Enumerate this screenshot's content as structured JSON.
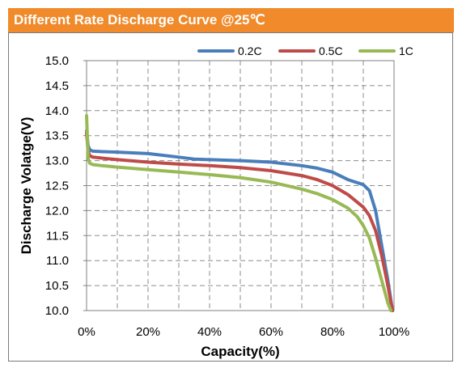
{
  "chart_data": {
    "type": "line",
    "title": "Different Rate Discharge Curve @25℃",
    "xlabel": "Capacity(%)",
    "ylabel": "Discharge Volatge(V)",
    "xlim": [
      0,
      100
    ],
    "ylim": [
      10.0,
      15.0
    ],
    "x_ticks": [
      "0%",
      "20%",
      "40%",
      "60%",
      "80%",
      "100%"
    ],
    "y_ticks": [
      "15.0",
      "14.5",
      "14.0",
      "13.5",
      "13.0",
      "12.5",
      "12.0",
      "11.5",
      "11.0",
      "10.5",
      "10.0"
    ],
    "grid": true,
    "legend_position": "top-right",
    "series": [
      {
        "name": "0.2C",
        "color": "#4a7ebb",
        "points": [
          [
            0,
            13.6
          ],
          [
            0.5,
            13.3
          ],
          [
            1,
            13.22
          ],
          [
            2,
            13.19
          ],
          [
            5,
            13.18
          ],
          [
            10,
            13.17
          ],
          [
            20,
            13.14
          ],
          [
            30,
            13.07
          ],
          [
            35,
            13.03
          ],
          [
            40,
            13.02
          ],
          [
            50,
            13.0
          ],
          [
            60,
            12.97
          ],
          [
            70,
            12.9
          ],
          [
            75,
            12.85
          ],
          [
            80,
            12.77
          ],
          [
            85,
            12.62
          ],
          [
            90,
            12.52
          ],
          [
            92,
            12.4
          ],
          [
            94,
            12.0
          ],
          [
            96,
            11.3
          ],
          [
            98,
            10.6
          ],
          [
            99.5,
            10.0
          ]
        ]
      },
      {
        "name": "0.5C",
        "color": "#be4b48",
        "points": [
          [
            0,
            13.55
          ],
          [
            0.5,
            13.2
          ],
          [
            1,
            13.1
          ],
          [
            2,
            13.07
          ],
          [
            5,
            13.05
          ],
          [
            10,
            13.02
          ],
          [
            20,
            12.97
          ],
          [
            30,
            12.93
          ],
          [
            40,
            12.9
          ],
          [
            50,
            12.86
          ],
          [
            60,
            12.8
          ],
          [
            70,
            12.7
          ],
          [
            75,
            12.62
          ],
          [
            80,
            12.5
          ],
          [
            85,
            12.32
          ],
          [
            90,
            12.07
          ],
          [
            92,
            11.9
          ],
          [
            94,
            11.6
          ],
          [
            96,
            11.1
          ],
          [
            98,
            10.5
          ],
          [
            99.5,
            10.0
          ]
        ]
      },
      {
        "name": "1C",
        "color": "#98b954",
        "points": [
          [
            0,
            13.9
          ],
          [
            0.5,
            13.05
          ],
          [
            1,
            12.95
          ],
          [
            2,
            12.92
          ],
          [
            5,
            12.9
          ],
          [
            10,
            12.87
          ],
          [
            20,
            12.82
          ],
          [
            30,
            12.77
          ],
          [
            40,
            12.72
          ],
          [
            50,
            12.66
          ],
          [
            60,
            12.57
          ],
          [
            70,
            12.43
          ],
          [
            75,
            12.34
          ],
          [
            80,
            12.22
          ],
          [
            85,
            12.05
          ],
          [
            88,
            11.88
          ],
          [
            90,
            11.7
          ],
          [
            92,
            11.45
          ],
          [
            94,
            11.05
          ],
          [
            96,
            10.6
          ],
          [
            98,
            10.15
          ],
          [
            99,
            10.0
          ]
        ]
      }
    ]
  }
}
